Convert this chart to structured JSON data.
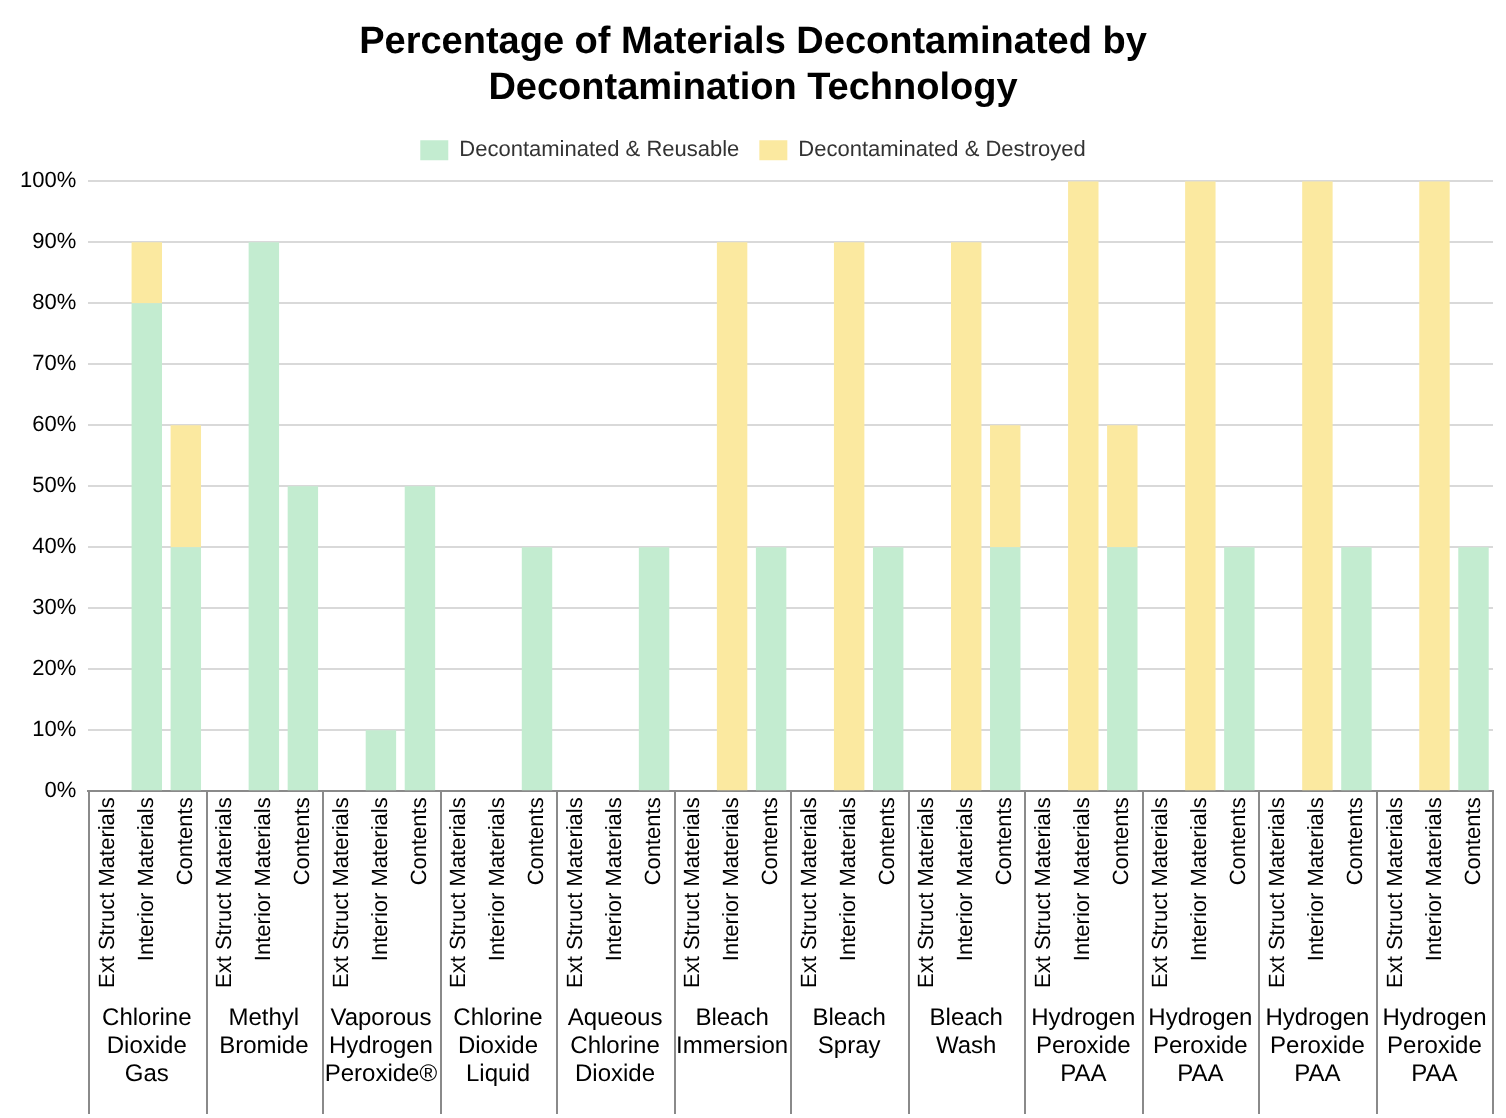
{
  "chart_data": {
    "type": "bar",
    "stacked": true,
    "title": "Percentage of Materials Decontaminated by Decontamination Technology",
    "categories": [
      "Ext Struct Materials",
      "Interior Materials",
      "Contents",
      "Ext Struct Materials",
      "Interior Materials",
      "Contents",
      "Ext Struct Materials",
      "Interior Materials",
      "Contents",
      "Ext Struct Materials",
      "Interior Materials",
      "Contents",
      "Ext Struct Materials",
      "Interior Materials",
      "Contents",
      "Ext Struct Materials",
      "Interior Materials",
      "Contents",
      "Ext Struct Materials",
      "Interior Materials",
      "Contents",
      "Ext Struct Materials",
      "Interior Materials",
      "Contents",
      "Ext Struct Materials",
      "Interior Materials",
      "Contents",
      "Ext Struct Materials",
      "Interior Materials",
      "Contents",
      "Ext Struct Materials",
      "Interior Materials",
      "Contents",
      "Ext Struct Materials",
      "Interior Materials",
      "Contents"
    ],
    "series": [
      {
        "name": "Decontaminated & Reusable",
        "color": "#c3ecd0",
        "values": [
          0,
          80,
          40,
          0,
          90,
          50,
          0,
          10,
          50,
          0,
          0,
          40,
          0,
          0,
          40,
          0,
          0,
          40,
          0,
          0,
          40,
          0,
          0,
          40,
          0,
          0,
          40,
          0,
          0,
          40,
          0,
          0,
          40,
          0,
          0,
          40
        ]
      },
      {
        "name": "Decontaminated & Destroyed",
        "color": "#fbe9a0",
        "values": [
          0,
          10,
          20,
          0,
          0,
          0,
          0,
          0,
          0,
          0,
          0,
          0,
          0,
          0,
          0,
          0,
          90,
          0,
          0,
          90,
          0,
          0,
          90,
          20,
          0,
          100,
          20,
          0,
          100,
          0,
          0,
          100,
          0,
          0,
          100,
          0
        ]
      }
    ],
    "annotations": [
      "Chlorine Dioxide Gas",
      "Methyl Bromide",
      "Vaporous Hydrogen Peroxide®",
      "Chlorine Dioxide Liquid",
      "Aqueous Chlorine Dioxide",
      "Bleach Immersion",
      "Bleach Spray",
      "Bleach Wash",
      "Hydrogen Peroxide PAA",
      "Hydrogen Peroxide PAA",
      "Hydrogen Peroxide PAA",
      "Hydrogen Peroxide PAA"
    ],
    "ylim": [
      0,
      100
    ],
    "yticks": [
      {
        "value": 0,
        "label": "0%"
      },
      {
        "value": 10,
        "label": "10%"
      },
      {
        "value": 20,
        "label": "20%"
      },
      {
        "value": 30,
        "label": "30%"
      },
      {
        "value": 40,
        "label": "40%"
      },
      {
        "value": 50,
        "label": "50%"
      },
      {
        "value": 60,
        "label": "60%"
      },
      {
        "value": 70,
        "label": "70%"
      },
      {
        "value": 80,
        "label": "80%"
      },
      {
        "value": 90,
        "label": "90%"
      },
      {
        "value": 100,
        "label": "100%"
      }
    ],
    "grid": "y",
    "legend": "top"
  }
}
